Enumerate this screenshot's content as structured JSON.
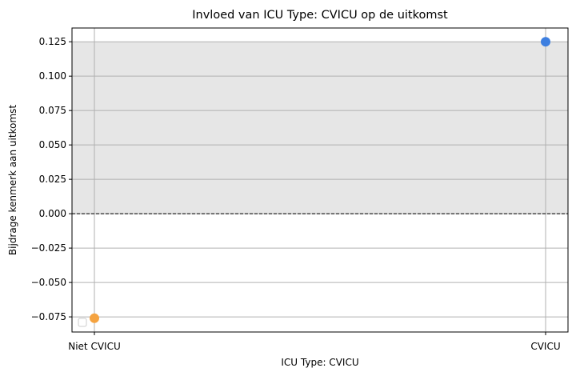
{
  "chart_data": {
    "type": "scatter",
    "title": "Invloed van ICU Type: CVICU op de uitkomst",
    "xlabel": "ICU Type: CVICU",
    "ylabel": "Bijdrage kenmerk aan uitkomst",
    "categories": [
      "Niet CVICU",
      "CVICU"
    ],
    "points": [
      {
        "category": "Niet CVICU",
        "value": -0.076,
        "color": "#f5a340"
      },
      {
        "category": "CVICU",
        "value": 0.125,
        "color": "#3d7fe0"
      }
    ],
    "y_ticks": [
      "0.125",
      "0.100",
      "0.075",
      "0.050",
      "0.025",
      "0.000",
      "−0.025",
      "−0.050",
      "−0.075"
    ],
    "ylim": [
      -0.086,
      0.135
    ],
    "positive_band": [
      0,
      0.125
    ],
    "reference_line": 0,
    "grid": true,
    "legend": "lower-left",
    "colors": {
      "band": "#e6e6e6",
      "grid": "#b0b0b0",
      "axis": "#000000"
    }
  }
}
